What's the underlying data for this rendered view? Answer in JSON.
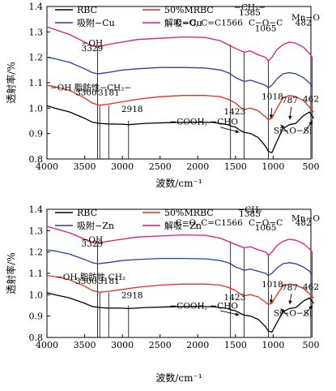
{
  "chart_data": [
    {
      "type": "line",
      "xlabel": "波数/cm⁻¹",
      "ylabel": "透射率/%",
      "xlim": [
        4000,
        500
      ],
      "ylim": [
        0.8,
        1.4
      ],
      "xticks": [
        4000,
        3500,
        3000,
        2500,
        2000,
        1500,
        1000,
        500
      ],
      "yticks": [
        0.8,
        0.9,
        1.0,
        1.1,
        1.2,
        1.3,
        1.4
      ],
      "xtick_labels": [
        "4000",
        "3500",
        "3000",
        "2500",
        "2000",
        "1500",
        "1000",
        "500"
      ],
      "ytick_labels": [
        "0.8",
        "0.9",
        "1.0",
        "1.1",
        "1.2",
        "1.3",
        "1.4"
      ],
      "legend_position": "top",
      "series": [
        {
          "name": "RBC",
          "color": "#000000",
          "x": [
            4000,
            3900,
            3700,
            3500,
            3400,
            3300,
            3200,
            3000,
            2918,
            2700,
            2400,
            2100,
            1800,
            1600,
            1566,
            1500,
            1423,
            1385,
            1300,
            1200,
            1100,
            1065,
            1018,
            950,
            870,
            787,
            700,
            600,
            520,
            462
          ],
          "y": [
            1.01,
            1.0,
            0.985,
            0.96,
            0.945,
            0.94,
            0.938,
            0.937,
            0.935,
            0.94,
            0.943,
            0.945,
            0.944,
            0.935,
            0.93,
            0.925,
            0.91,
            0.905,
            0.9,
            0.885,
            0.85,
            0.83,
            0.825,
            0.87,
            0.92,
            0.935,
            0.94,
            0.97,
            0.985,
            0.96
          ]
        },
        {
          "name": "50%MRBC",
          "color": "#e0301e",
          "x": [
            4000,
            3900,
            3700,
            3500,
            3400,
            3300,
            3200,
            3000,
            2800,
            2500,
            2200,
            1900,
            1700,
            1600,
            1566,
            1500,
            1423,
            1385,
            1300,
            1200,
            1100,
            1065,
            1018,
            950,
            870,
            787,
            700,
            600,
            520,
            482,
            462
          ],
          "y": [
            1.09,
            1.085,
            1.07,
            1.04,
            1.02,
            1.012,
            1.015,
            1.025,
            1.035,
            1.045,
            1.05,
            1.05,
            1.045,
            1.035,
            1.03,
            1.02,
            1.0,
            0.995,
            1.0,
            0.99,
            0.965,
            0.955,
            0.96,
            1.0,
            1.04,
            1.05,
            1.045,
            1.03,
            1.005,
            0.99,
            0.985
          ]
        },
        {
          "name": "吸附−Cu",
          "color": "#2a3f9a",
          "x": [
            4000,
            3900,
            3700,
            3500,
            3400,
            3329,
            3300,
            3200,
            3000,
            2800,
            2500,
            2200,
            1900,
            1700,
            1600,
            1566,
            1500,
            1423,
            1385,
            1300,
            1200,
            1100,
            1065,
            1018,
            950,
            870,
            787,
            700,
            600,
            520,
            482
          ],
          "y": [
            1.2,
            1.195,
            1.18,
            1.155,
            1.14,
            1.135,
            1.136,
            1.14,
            1.15,
            1.155,
            1.16,
            1.16,
            1.158,
            1.15,
            1.14,
            1.135,
            1.12,
            1.11,
            1.105,
            1.11,
            1.1,
            1.09,
            1.08,
            1.09,
            1.115,
            1.135,
            1.14,
            1.135,
            1.12,
            1.1,
            1.085
          ]
        },
        {
          "name": "解吸−Cu",
          "color": "#e0197a",
          "x": [
            4000,
            3900,
            3700,
            3500,
            3400,
            3329,
            3300,
            3200,
            3000,
            2800,
            2500,
            2200,
            1900,
            1700,
            1600,
            1566,
            1500,
            1423,
            1385,
            1300,
            1200,
            1100,
            1065,
            1018,
            950,
            870,
            787,
            700,
            600,
            520,
            482
          ],
          "y": [
            1.32,
            1.31,
            1.29,
            1.26,
            1.245,
            1.24,
            1.242,
            1.25,
            1.26,
            1.27,
            1.275,
            1.28,
            1.278,
            1.265,
            1.25,
            1.245,
            1.235,
            1.225,
            1.22,
            1.225,
            1.21,
            1.2,
            1.185,
            1.2,
            1.23,
            1.25,
            1.26,
            1.255,
            1.24,
            1.215,
            1.2
          ]
        }
      ],
      "annotations": [
        {
          "text": "−OH",
          "x": 3400,
          "y": 1.245
        },
        {
          "text": "3329",
          "x": 3400,
          "y": 1.225
        },
        {
          "text": "−CH₂−",
          "x": 1310,
          "y": 1.385
        },
        {
          "text": "1385",
          "x": 1310,
          "y": 1.365
        },
        {
          "text": "C=O, C=C1566",
          "x": 1850,
          "y": 1.325
        },
        {
          "text": "C−O−C",
          "x": 1100,
          "y": 1.325
        },
        {
          "text": "1065",
          "x": 1100,
          "y": 1.302
        },
        {
          "text": "Mn−O",
          "x": 570,
          "y": 1.345
        },
        {
          "text": "482",
          "x": 600,
          "y": 1.325
        },
        {
          "text": "−OH 脂肪性−CH₂−",
          "x": 3420,
          "y": 1.07
        },
        {
          "text": "3300",
          "x": 3480,
          "y": 1.05
        },
        {
          "text": "3181",
          "x": 3180,
          "y": 1.05
        },
        {
          "text": "2918",
          "x": 2870,
          "y": 0.985
        },
        {
          "text": "1423",
          "x": 1510,
          "y": 0.975
        },
        {
          "text": "1018",
          "x": 1010,
          "y": 1.035
        },
        {
          "text": "787",
          "x": 780,
          "y": 1.02
        },
        {
          "text": "462",
          "x": 500,
          "y": 1.025
        },
        {
          "text": "−COOH, −CHO",
          "x": 1920,
          "y": 0.935
        },
        {
          "text": "Si−O−Si",
          "x": 740,
          "y": 0.9
        }
      ]
    },
    {
      "type": "line",
      "xlabel": "波数/cm⁻¹",
      "ylabel": "透射率/%",
      "xlim": [
        4000,
        500
      ],
      "ylim": [
        0.8,
        1.4
      ],
      "xticks": [
        4000,
        3500,
        3000,
        2500,
        2000,
        1500,
        1000,
        500
      ],
      "yticks": [
        0.8,
        0.9,
        1.0,
        1.1,
        1.2,
        1.3,
        1.4
      ],
      "xtick_labels": [
        "4000",
        "3500",
        "3000",
        "2500",
        "2000",
        "1500",
        "1000",
        "500"
      ],
      "ytick_labels": [
        "0.8",
        "0.9",
        "1.0",
        "1.1",
        "1.2",
        "1.3",
        "1.4"
      ],
      "legend_position": "top",
      "series": [
        {
          "name": "RBC",
          "color": "#000000",
          "x": [
            4000,
            3900,
            3700,
            3500,
            3400,
            3300,
            3200,
            3000,
            2918,
            2700,
            2400,
            2100,
            1800,
            1600,
            1566,
            1500,
            1423,
            1385,
            1300,
            1200,
            1100,
            1065,
            1018,
            950,
            870,
            787,
            700,
            600,
            520,
            462
          ],
          "y": [
            1.01,
            1.0,
            0.985,
            0.96,
            0.945,
            0.94,
            0.938,
            0.937,
            0.935,
            0.94,
            0.943,
            0.945,
            0.944,
            0.935,
            0.93,
            0.925,
            0.91,
            0.905,
            0.9,
            0.885,
            0.85,
            0.83,
            0.825,
            0.87,
            0.92,
            0.935,
            0.94,
            0.97,
            0.985,
            0.96
          ]
        },
        {
          "name": "50%MRBC",
          "color": "#e0301e",
          "x": [
            4000,
            3900,
            3700,
            3500,
            3400,
            3300,
            3200,
            3000,
            2800,
            2500,
            2200,
            1900,
            1700,
            1600,
            1566,
            1500,
            1423,
            1385,
            1300,
            1200,
            1100,
            1065,
            1018,
            950,
            870,
            787,
            700,
            600,
            520,
            482,
            462
          ],
          "y": [
            1.09,
            1.085,
            1.07,
            1.04,
            1.02,
            1.012,
            1.015,
            1.025,
            1.035,
            1.045,
            1.05,
            1.05,
            1.045,
            1.035,
            1.03,
            1.02,
            1.0,
            0.995,
            1.0,
            0.99,
            0.965,
            0.955,
            0.96,
            1.0,
            1.04,
            1.05,
            1.045,
            1.03,
            1.005,
            0.99,
            0.985
          ]
        },
        {
          "name": "吸附−Zn",
          "color": "#2a3f9a",
          "x": [
            4000,
            3900,
            3700,
            3500,
            3400,
            3329,
            3300,
            3200,
            3000,
            2800,
            2500,
            2200,
            1900,
            1700,
            1600,
            1566,
            1500,
            1423,
            1385,
            1300,
            1200,
            1100,
            1065,
            1018,
            950,
            870,
            787,
            700,
            600,
            520,
            482
          ],
          "y": [
            1.21,
            1.205,
            1.19,
            1.165,
            1.15,
            1.145,
            1.146,
            1.15,
            1.16,
            1.165,
            1.17,
            1.17,
            1.168,
            1.16,
            1.15,
            1.145,
            1.13,
            1.12,
            1.115,
            1.12,
            1.11,
            1.1,
            1.09,
            1.1,
            1.125,
            1.145,
            1.15,
            1.145,
            1.13,
            1.11,
            1.095
          ]
        },
        {
          "name": "解吸−Zn",
          "color": "#e0197a",
          "x": [
            4000,
            3900,
            3700,
            3500,
            3400,
            3329,
            3300,
            3200,
            3000,
            2800,
            2500,
            2200,
            1900,
            1700,
            1600,
            1566,
            1500,
            1423,
            1385,
            1300,
            1200,
            1100,
            1065,
            1018,
            950,
            870,
            787,
            700,
            600,
            520,
            482
          ],
          "y": [
            1.32,
            1.31,
            1.29,
            1.26,
            1.245,
            1.24,
            1.242,
            1.25,
            1.26,
            1.27,
            1.275,
            1.28,
            1.278,
            1.265,
            1.25,
            1.245,
            1.235,
            1.225,
            1.22,
            1.225,
            1.21,
            1.2,
            1.185,
            1.2,
            1.23,
            1.25,
            1.26,
            1.255,
            1.24,
            1.215,
            1.2
          ]
        }
      ],
      "annotations": [
        {
          "text": "−OH",
          "x": 3400,
          "y": 1.245
        },
        {
          "text": "3329",
          "x": 3400,
          "y": 1.225
        },
        {
          "text": "−CH₂",
          "x": 1310,
          "y": 1.385
        },
        {
          "text": "1385",
          "x": 1310,
          "y": 1.365
        },
        {
          "text": "C=O, C=C1566",
          "x": 1850,
          "y": 1.325
        },
        {
          "text": "C−O−C",
          "x": 1100,
          "y": 1.325
        },
        {
          "text": "1065",
          "x": 1100,
          "y": 1.302
        },
        {
          "text": "Mn−O",
          "x": 570,
          "y": 1.345
        },
        {
          "text": "482",
          "x": 600,
          "y": 1.325
        },
        {
          "text": "−OH 脂肪性 CH₂",
          "x": 3420,
          "y": 1.07
        },
        {
          "text": "3300",
          "x": 3480,
          "y": 1.05
        },
        {
          "text": "3181",
          "x": 3180,
          "y": 1.05
        },
        {
          "text": "2918",
          "x": 2870,
          "y": 0.985
        },
        {
          "text": "1423",
          "x": 1510,
          "y": 0.975
        },
        {
          "text": "1018",
          "x": 1010,
          "y": 1.035
        },
        {
          "text": "787",
          "x": 780,
          "y": 1.02
        },
        {
          "text": "462",
          "x": 500,
          "y": 1.025
        },
        {
          "text": "−COOH, −CHO",
          "x": 1920,
          "y": 0.935
        },
        {
          "text": "Si−O−Si",
          "x": 740,
          "y": 0.9
        }
      ]
    }
  ]
}
